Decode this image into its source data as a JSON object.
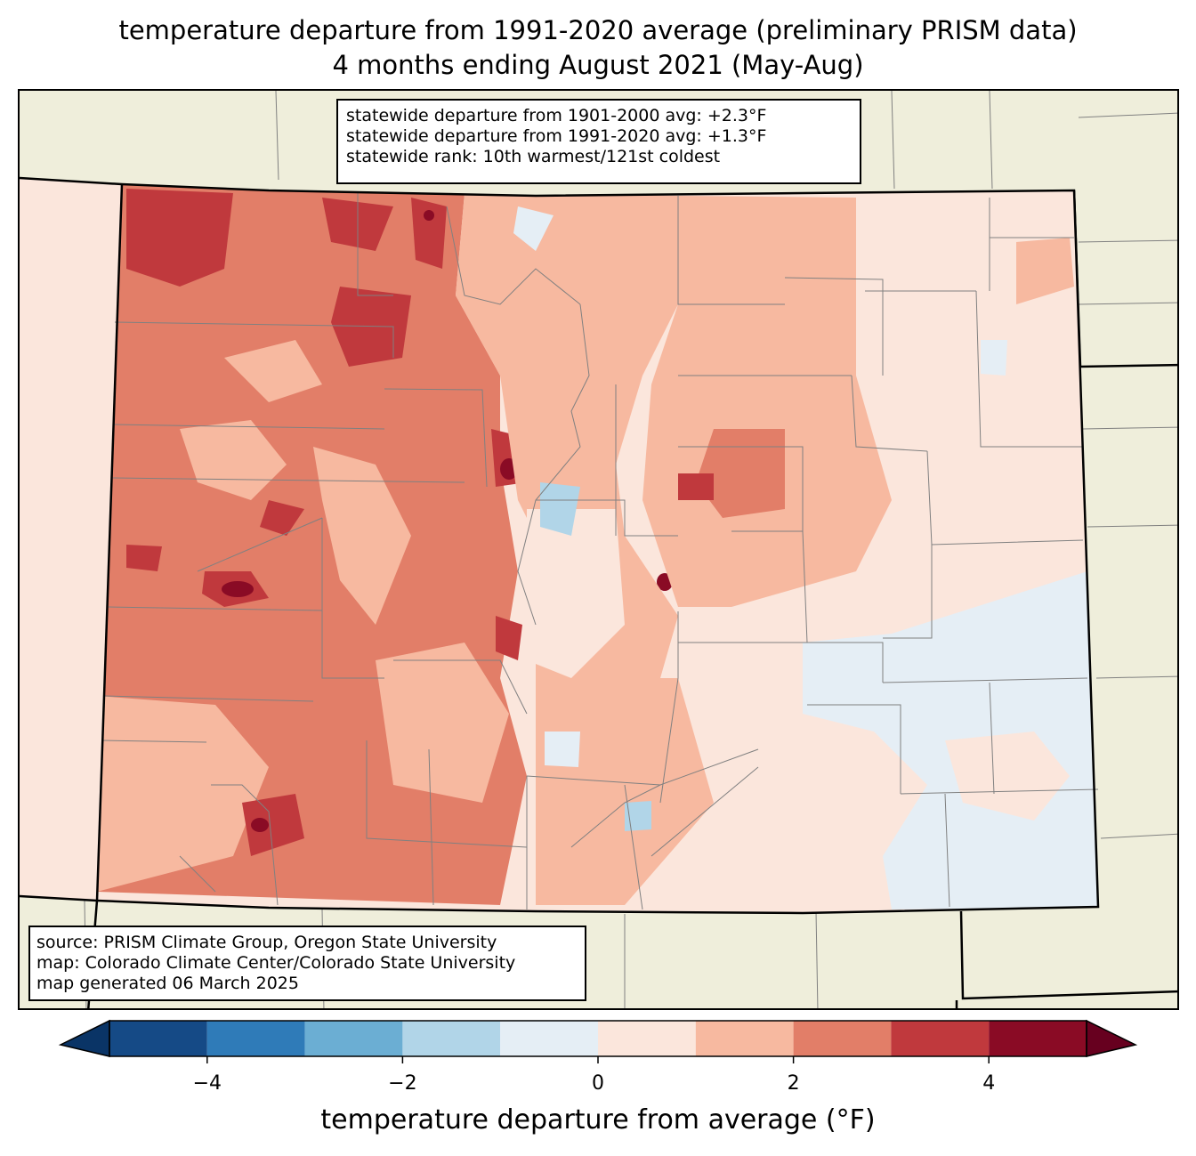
{
  "title": {
    "line1": "temperature departure from 1991-2020 average (preliminary PRISM data)",
    "line2": "4 months ending August 2021 (May-Aug)"
  },
  "stats_box": {
    "line1": "statewide departure from 1901-2000 avg: +2.3°F",
    "line2": "statewide departure from 1991-2020 avg: +1.3°F",
    "line3": "statewide rank: 10th warmest/121st coldest"
  },
  "source_box": {
    "line1": "source: PRISM Climate Group, Oregon State University",
    "line2": "map: Colorado Climate Center/Colorado State University",
    "line3": "map generated 06 March 2025"
  },
  "colorbar": {
    "label": "temperature departure from average (°F)",
    "ticks": [
      "−4",
      "−2",
      "0",
      "2",
      "4"
    ],
    "tick_values": [
      -4,
      -2,
      0,
      2,
      4
    ],
    "range": [
      -5,
      5
    ],
    "bins": [
      {
        "from": -5,
        "to": -4,
        "color": "#154a86"
      },
      {
        "from": -4,
        "to": -3,
        "color": "#2f7bb8"
      },
      {
        "from": -3,
        "to": -2,
        "color": "#6baed3"
      },
      {
        "from": -2,
        "to": -1,
        "color": "#b1d5e8"
      },
      {
        "from": -1,
        "to": 0,
        "color": "#e5eef5"
      },
      {
        "from": 0,
        "to": 1,
        "color": "#fbe6dc"
      },
      {
        "from": 1,
        "to": 2,
        "color": "#f7b9a0"
      },
      {
        "from": 2,
        "to": 3,
        "color": "#e27e68"
      },
      {
        "from": 3,
        "to": 4,
        "color": "#c0393d"
      },
      {
        "from": 4,
        "to": 5,
        "color": "#8a0b25"
      }
    ],
    "under_color": "#0a3466",
    "over_color": "#67001f"
  },
  "map_colors": {
    "land_outside": "#efeedb",
    "state_border": "#000000",
    "county_border": "#808080"
  }
}
